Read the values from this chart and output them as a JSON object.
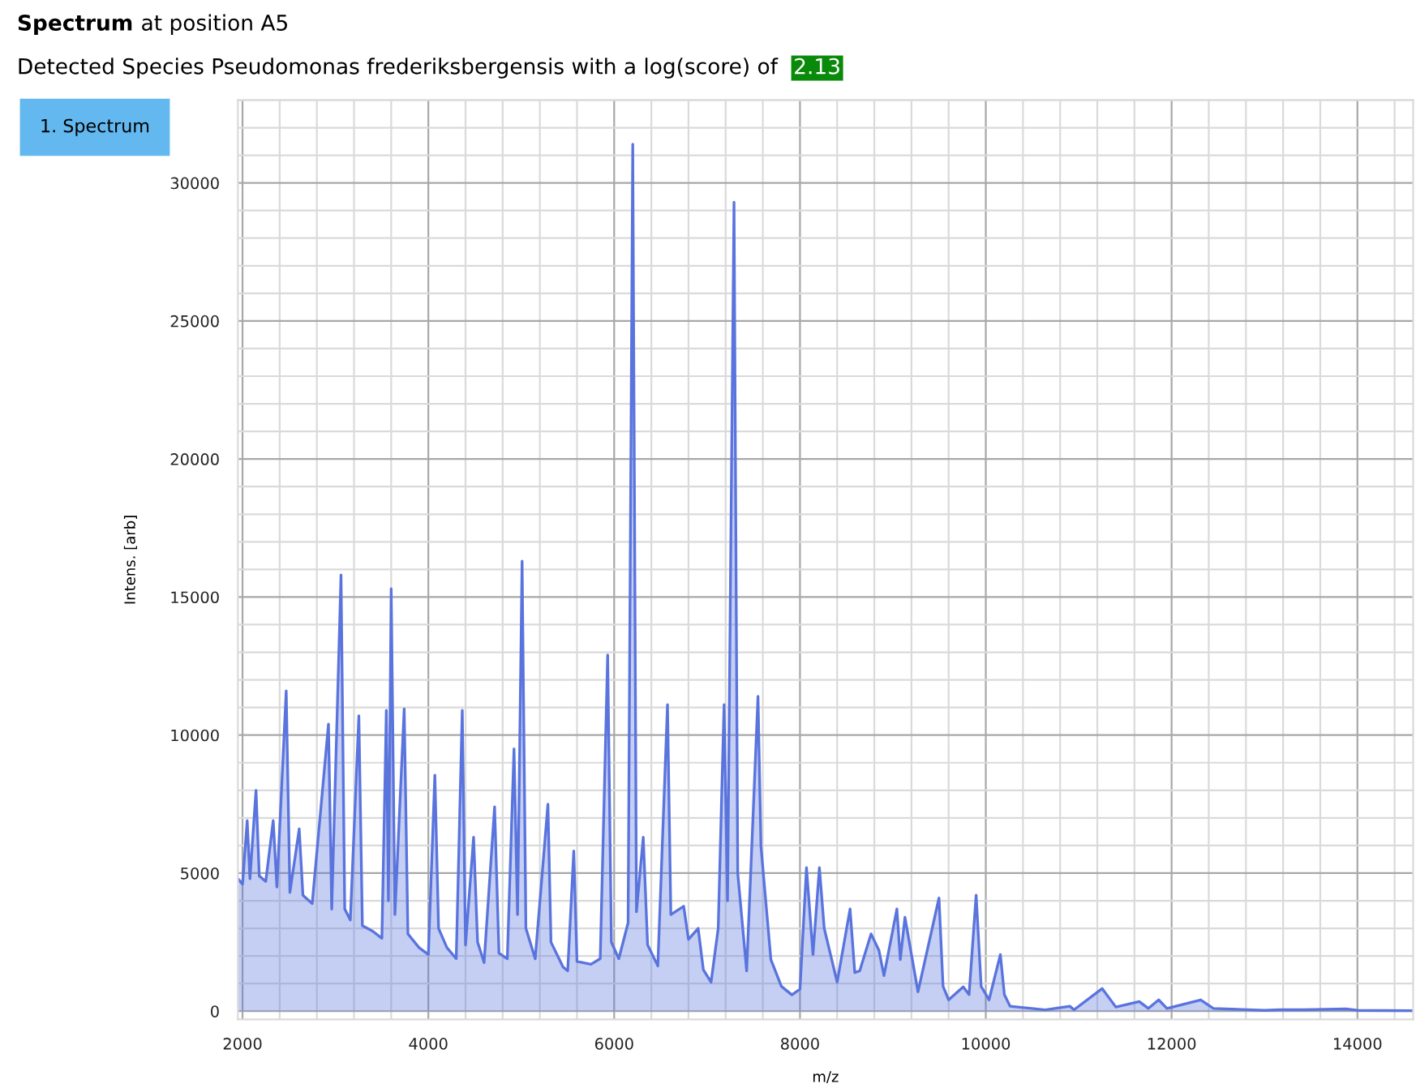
{
  "chart_data": {
    "type": "area",
    "title": "Spectrum at position A5",
    "subtitle": "Detected Species Pseudomonas frederiksbergensis with a log(score) of 2.13",
    "annotations": [
      "1. Spectrum"
    ],
    "xlabel": "m/z",
    "ylabel": "Intens. [arb]",
    "xlim": [
      1950,
      14600
    ],
    "ylim": [
      -300,
      33000
    ],
    "xticks": [
      2000,
      4000,
      6000,
      8000,
      10000,
      12000,
      14000
    ],
    "yticks": [
      0,
      5000,
      10000,
      15000,
      20000,
      25000,
      30000
    ],
    "grid": true,
    "series": [
      {
        "color": "#5a74de",
        "x": [
          1950,
          2000,
          2050,
          2080,
          2145,
          2180,
          2250,
          2330,
          2370,
          2470,
          2510,
          2610,
          2650,
          2750,
          2925,
          2960,
          3060,
          3100,
          3160,
          3252,
          3290,
          3400,
          3500,
          3548,
          3570,
          3600,
          3640,
          3740,
          3780,
          3900,
          4000,
          4070,
          4110,
          4200,
          4300,
          4365,
          4400,
          4487,
          4530,
          4600,
          4713,
          4760,
          4850,
          4922,
          4960,
          5009,
          5050,
          5150,
          5287,
          5320,
          5450,
          5500,
          5565,
          5600,
          5750,
          5850,
          5930,
          5970,
          6050,
          6150,
          6200,
          6240,
          6313,
          6360,
          6470,
          6574,
          6610,
          6748,
          6800,
          6904,
          6960,
          7043,
          7120,
          7183,
          7220,
          7290,
          7330,
          7426,
          7548,
          7580,
          7687,
          7800,
          7913,
          8000,
          8070,
          8140,
          8209,
          8261,
          8400,
          8539,
          8590,
          8643,
          8765,
          8850,
          8904,
          9043,
          9080,
          9130,
          9270,
          9496,
          9540,
          9600,
          9757,
          9820,
          9896,
          9950,
          10035,
          10157,
          10200,
          10261,
          10640,
          10904,
          10950,
          11252,
          11400,
          11652,
          11750,
          11861,
          11950,
          12313,
          12450,
          13000,
          13165,
          13426,
          13878,
          14000,
          14600
        ],
        "values": [
          4800,
          4600,
          6900,
          4800,
          8000,
          4900,
          4700,
          6900,
          4500,
          11600,
          4300,
          6600,
          4200,
          3900,
          10400,
          3700,
          15800,
          3700,
          3300,
          10700,
          3100,
          2900,
          2640,
          10900,
          4000,
          15300,
          3500,
          10950,
          2800,
          2300,
          2050,
          8550,
          3000,
          2300,
          1900,
          10900,
          2400,
          6300,
          2500,
          1760,
          7400,
          2100,
          1900,
          9500,
          3500,
          16300,
          3000,
          1900,
          7500,
          2500,
          1600,
          1460,
          5800,
          1800,
          1700,
          1900,
          12900,
          2500,
          1900,
          3200,
          31400,
          3600,
          6300,
          2400,
          1640,
          11100,
          3500,
          3800,
          2600,
          3000,
          1500,
          1050,
          3000,
          11100,
          4000,
          29300,
          5000,
          1460,
          11400,
          5970,
          1870,
          900,
          590,
          800,
          5200,
          2050,
          5200,
          3000,
          1050,
          3700,
          1400,
          1460,
          2800,
          2200,
          1290,
          3700,
          1870,
          3400,
          700,
          4100,
          900,
          410,
          880,
          600,
          4200,
          900,
          410,
          2050,
          600,
          180,
          50,
          180,
          50,
          820,
          150,
          350,
          100,
          410,
          100,
          410,
          100,
          30,
          50,
          50,
          80,
          30,
          20
        ]
      }
    ]
  }
}
